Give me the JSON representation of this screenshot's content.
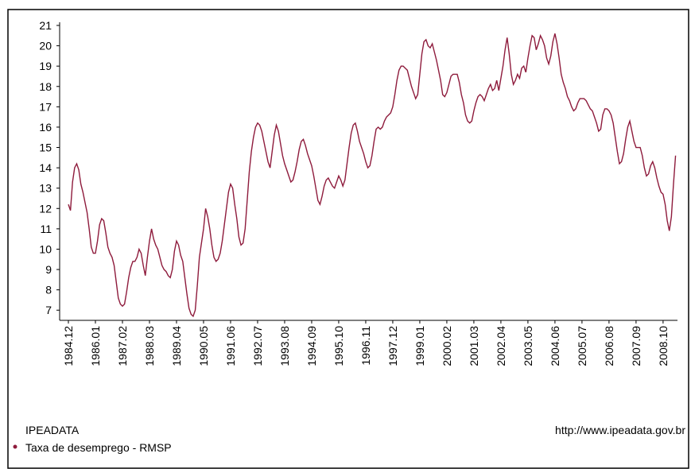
{
  "chart_data": {
    "type": "line",
    "source": "IPEADATA",
    "url": "http://www.ipeadata.gov.br",
    "categories": [
      "1984.12",
      null,
      null,
      null,
      null,
      null,
      null,
      null,
      null,
      null,
      null,
      null,
      null,
      "1986.01",
      null,
      null,
      null,
      null,
      null,
      null,
      null,
      null,
      null,
      null,
      null,
      null,
      "1987.02",
      null,
      null,
      null,
      null,
      null,
      null,
      null,
      null,
      null,
      null,
      null,
      null,
      "1988.03",
      null,
      null,
      null,
      null,
      null,
      null,
      null,
      null,
      null,
      null,
      null,
      null,
      "1989.04",
      null,
      null,
      null,
      null,
      null,
      null,
      null,
      null,
      null,
      null,
      null,
      null,
      "1990.05",
      null,
      null,
      null,
      null,
      null,
      null,
      null,
      null,
      null,
      null,
      null,
      null,
      "1991.06",
      null,
      null,
      null,
      null,
      null,
      null,
      null,
      null,
      null,
      null,
      null,
      null,
      "1992.07",
      null,
      null,
      null,
      null,
      null,
      null,
      null,
      null,
      null,
      null,
      null,
      null,
      "1993.08",
      null,
      null,
      null,
      null,
      null,
      null,
      null,
      null,
      null,
      null,
      null,
      null,
      "1994.09",
      null,
      null,
      null,
      null,
      null,
      null,
      null,
      null,
      null,
      null,
      null,
      null,
      "1995.10",
      null,
      null,
      null,
      null,
      null,
      null,
      null,
      null,
      null,
      null,
      null,
      null,
      "1996.11",
      null,
      null,
      null,
      null,
      null,
      null,
      null,
      null,
      null,
      null,
      null,
      null,
      "1997.12",
      null,
      null,
      null,
      null,
      null,
      null,
      null,
      null,
      null,
      null,
      null,
      null,
      "1999.01",
      null,
      null,
      null,
      null,
      null,
      null,
      null,
      null,
      null,
      null,
      null,
      null,
      "2000.02",
      null,
      null,
      null,
      null,
      null,
      null,
      null,
      null,
      null,
      null,
      null,
      null,
      "2001.03",
      null,
      null,
      null,
      null,
      null,
      null,
      null,
      null,
      null,
      null,
      null,
      null,
      "2002.04",
      null,
      null,
      null,
      null,
      null,
      null,
      null,
      null,
      null,
      null,
      null,
      null,
      "2003.05",
      null,
      null,
      null,
      null,
      null,
      null,
      null,
      null,
      null,
      null,
      null,
      null,
      "2004.06",
      null,
      null,
      null,
      null,
      null,
      null,
      null,
      null,
      null,
      null,
      null,
      null,
      "2005.07",
      null,
      null,
      null,
      null,
      null,
      null,
      null,
      null,
      null,
      null,
      null,
      null,
      "2006.08",
      null,
      null,
      null,
      null,
      null,
      null,
      null,
      null,
      null,
      null,
      null,
      null,
      "2007.09",
      null,
      null,
      null,
      null,
      null,
      null,
      null,
      null,
      null,
      null,
      null,
      null,
      "2008.10",
      null,
      null,
      null,
      null,
      null,
      null
    ],
    "series": [
      {
        "name": "Taxa de desemprego - RMSP",
        "color": "#8e1b3c",
        "values": [
          12.2,
          11.9,
          13.3,
          14.0,
          14.2,
          13.9,
          13.2,
          12.8,
          12.3,
          11.8,
          11.0,
          10.1,
          9.8,
          9.8,
          10.4,
          11.2,
          11.5,
          11.4,
          10.8,
          10.1,
          9.8,
          9.6,
          9.2,
          8.4,
          7.6,
          7.3,
          7.2,
          7.3,
          7.9,
          8.6,
          9.1,
          9.4,
          9.4,
          9.6,
          10.0,
          9.8,
          9.2,
          8.7,
          9.6,
          10.4,
          11.0,
          10.5,
          10.2,
          10.0,
          9.6,
          9.2,
          9.0,
          8.9,
          8.7,
          8.6,
          9.0,
          9.9,
          10.4,
          10.2,
          9.7,
          9.4,
          8.6,
          7.8,
          7.1,
          6.8,
          6.7,
          7.0,
          8.2,
          9.6,
          10.3,
          11.0,
          12.0,
          11.6,
          11.0,
          10.2,
          9.6,
          9.4,
          9.5,
          9.8,
          10.4,
          11.2,
          12.0,
          12.8,
          13.2,
          13.0,
          12.2,
          11.5,
          10.6,
          10.2,
          10.3,
          11.0,
          12.4,
          13.8,
          14.8,
          15.5,
          16.0,
          16.2,
          16.1,
          15.8,
          15.3,
          14.8,
          14.3,
          14.0,
          14.8,
          15.6,
          16.1,
          15.8,
          15.2,
          14.6,
          14.2,
          13.9,
          13.6,
          13.3,
          13.4,
          13.8,
          14.3,
          14.9,
          15.3,
          15.4,
          15.1,
          14.7,
          14.4,
          14.1,
          13.6,
          13.0,
          12.4,
          12.2,
          12.6,
          13.1,
          13.4,
          13.5,
          13.3,
          13.1,
          13.0,
          13.3,
          13.6,
          13.4,
          13.1,
          13.4,
          14.2,
          15.0,
          15.7,
          16.1,
          16.2,
          15.8,
          15.3,
          15.0,
          14.7,
          14.3,
          14.0,
          14.1,
          14.6,
          15.3,
          15.9,
          16.0,
          15.9,
          16.0,
          16.3,
          16.5,
          16.6,
          16.7,
          17.0,
          17.6,
          18.3,
          18.8,
          19.0,
          19.0,
          18.9,
          18.8,
          18.4,
          18.0,
          17.7,
          17.4,
          17.6,
          18.6,
          19.6,
          20.2,
          20.3,
          20.0,
          19.9,
          20.1,
          19.7,
          19.3,
          18.8,
          18.3,
          17.6,
          17.5,
          17.7,
          18.1,
          18.5,
          18.6,
          18.6,
          18.6,
          18.2,
          17.6,
          17.2,
          16.6,
          16.3,
          16.2,
          16.3,
          16.8,
          17.2,
          17.5,
          17.6,
          17.5,
          17.3,
          17.6,
          17.9,
          18.1,
          17.8,
          17.9,
          18.3,
          17.8,
          18.4,
          19.0,
          19.8,
          20.4,
          19.6,
          18.6,
          18.1,
          18.3,
          18.6,
          18.4,
          18.9,
          19.0,
          18.7,
          19.4,
          20.0,
          20.5,
          20.4,
          19.8,
          20.1,
          20.5,
          20.3,
          20.0,
          19.4,
          19.1,
          19.5,
          20.2,
          20.6,
          20.1,
          19.4,
          18.6,
          18.2,
          17.9,
          17.5,
          17.3,
          17.0,
          16.8,
          16.9,
          17.2,
          17.4,
          17.4,
          17.4,
          17.3,
          17.1,
          16.9,
          16.8,
          16.5,
          16.2,
          15.8,
          15.9,
          16.6,
          16.9,
          16.9,
          16.8,
          16.6,
          16.2,
          15.5,
          14.8,
          14.2,
          14.3,
          14.7,
          15.4,
          16.0,
          16.3,
          15.8,
          15.3,
          15.0,
          15.0,
          15.0,
          14.6,
          14.0,
          13.6,
          13.7,
          14.1,
          14.3,
          14.0,
          13.5,
          13.1,
          12.8,
          12.7,
          12.2,
          11.4,
          10.9,
          11.6,
          13.2,
          14.6
        ]
      }
    ],
    "ylim": [
      6.5,
      21
    ],
    "yticks": [
      7,
      8,
      9,
      10,
      11,
      12,
      13,
      14,
      15,
      16,
      17,
      18,
      19,
      20,
      21
    ],
    "grid": false
  }
}
